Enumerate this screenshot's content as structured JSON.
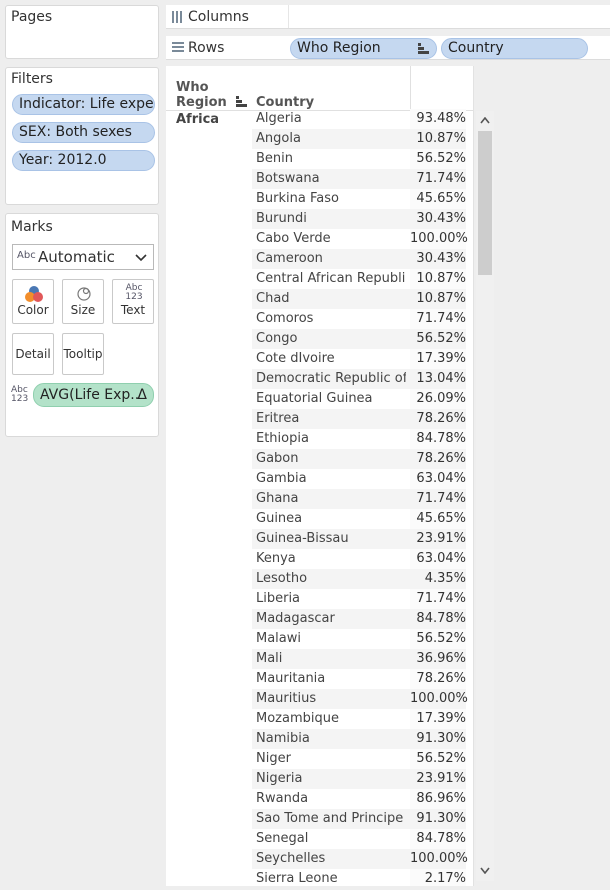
{
  "pages": {
    "title": "Pages"
  },
  "filters": {
    "title": "Filters",
    "items": [
      "Indicator: Life expe..",
      "SEX: Both sexes",
      "Year: 2012.0"
    ]
  },
  "marks": {
    "title": "Marks",
    "type_icon": "Abc",
    "type_value": "Automatic",
    "buttons": {
      "color": "Color",
      "size": "Size",
      "text": "Text",
      "detail": "Detail",
      "tooltip": "Tooltip"
    },
    "text_icon": "Abc 123",
    "field_pill": "AVG(Life Exp..",
    "field_pill_delta": "Δ"
  },
  "shelves": {
    "columns_label": "Columns",
    "rows_label": "Rows",
    "rows_pills": [
      "Who Region",
      "Country"
    ]
  },
  "table": {
    "header_region_line1": "Who",
    "header_region_line2": "Region",
    "header_country": "Country",
    "region": "Africa",
    "rows": [
      {
        "country": "Algeria",
        "value": "93.48%"
      },
      {
        "country": "Angola",
        "value": "10.87%"
      },
      {
        "country": "Benin",
        "value": "56.52%"
      },
      {
        "country": "Botswana",
        "value": "71.74%"
      },
      {
        "country": "Burkina Faso",
        "value": "45.65%"
      },
      {
        "country": "Burundi",
        "value": "30.43%"
      },
      {
        "country": "Cabo Verde",
        "value": "100.00%"
      },
      {
        "country": "Cameroon",
        "value": "30.43%"
      },
      {
        "country": "Central African Republic",
        "value": "10.87%"
      },
      {
        "country": "Chad",
        "value": "10.87%"
      },
      {
        "country": "Comoros",
        "value": "71.74%"
      },
      {
        "country": "Congo",
        "value": "56.52%"
      },
      {
        "country": "Cote dIvoire",
        "value": "17.39%"
      },
      {
        "country": "Democratic Republic of t..",
        "value": "13.04%"
      },
      {
        "country": "Equatorial Guinea",
        "value": "26.09%"
      },
      {
        "country": "Eritrea",
        "value": "78.26%"
      },
      {
        "country": "Ethiopia",
        "value": "84.78%"
      },
      {
        "country": "Gabon",
        "value": "78.26%"
      },
      {
        "country": "Gambia",
        "value": "63.04%"
      },
      {
        "country": "Ghana",
        "value": "71.74%"
      },
      {
        "country": "Guinea",
        "value": "45.65%"
      },
      {
        "country": "Guinea-Bissau",
        "value": "23.91%"
      },
      {
        "country": "Kenya",
        "value": "63.04%"
      },
      {
        "country": "Lesotho",
        "value": "4.35%"
      },
      {
        "country": "Liberia",
        "value": "71.74%"
      },
      {
        "country": "Madagascar",
        "value": "84.78%"
      },
      {
        "country": "Malawi",
        "value": "56.52%"
      },
      {
        "country": "Mali",
        "value": "36.96%"
      },
      {
        "country": "Mauritania",
        "value": "78.26%"
      },
      {
        "country": "Mauritius",
        "value": "100.00%"
      },
      {
        "country": "Mozambique",
        "value": "17.39%"
      },
      {
        "country": "Namibia",
        "value": "91.30%"
      },
      {
        "country": "Niger",
        "value": "56.52%"
      },
      {
        "country": "Nigeria",
        "value": "23.91%"
      },
      {
        "country": "Rwanda",
        "value": "86.96%"
      },
      {
        "country": "Sao Tome and Principe",
        "value": "91.30%"
      },
      {
        "country": "Senegal",
        "value": "84.78%"
      },
      {
        "country": "Seychelles",
        "value": "100.00%"
      },
      {
        "country": "Sierra Leone",
        "value": "2.17%"
      }
    ]
  }
}
